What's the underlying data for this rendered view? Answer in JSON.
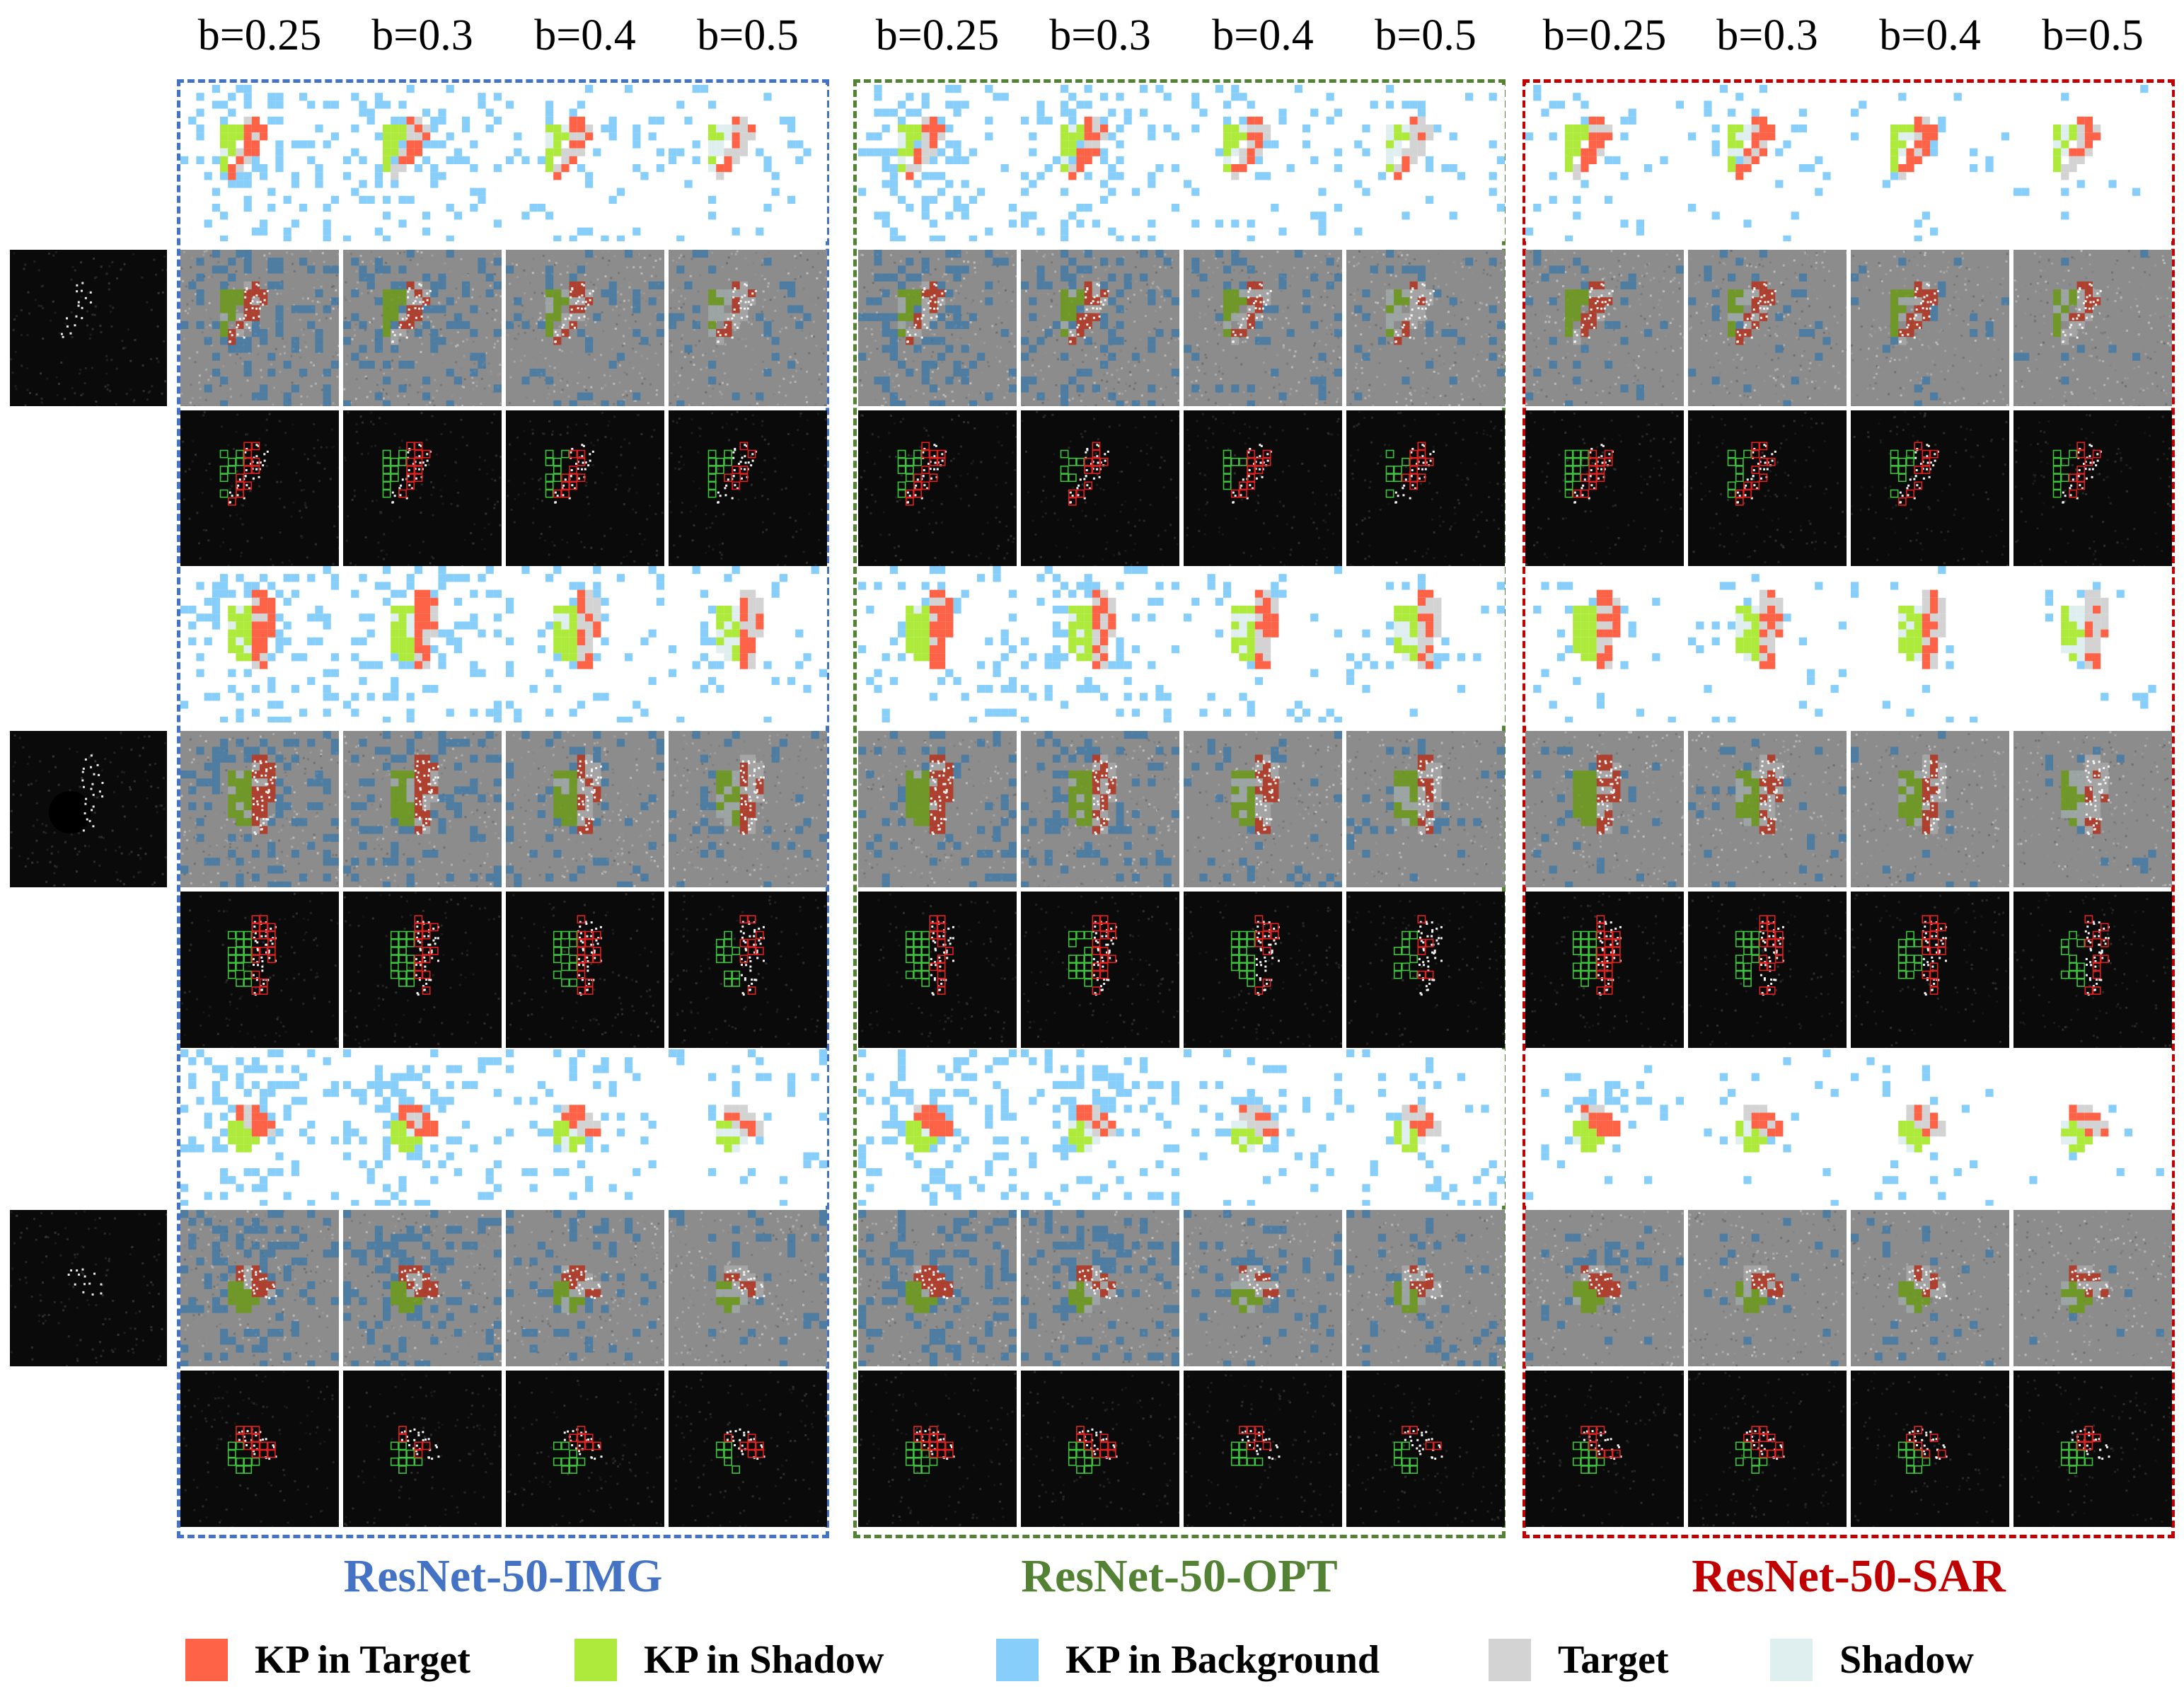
{
  "column_headers": [
    "b=0.25",
    "b=0.3",
    "b=0.4",
    "b=0.5"
  ],
  "groups": [
    {
      "title": "ResNet-50-IMG",
      "color": "#4472c4"
    },
    {
      "title": "ResNet-50-OPT",
      "color": "#548235"
    },
    {
      "title": "ResNet-50-SAR",
      "color": "#c00000"
    }
  ],
  "row_types": [
    "keypoint-map",
    "overlay-on-sar",
    "region-outline"
  ],
  "legend": [
    {
      "label": "KP in Target",
      "color": "#ff6347"
    },
    {
      "label": "KP in Shadow",
      "color": "#adea3c"
    },
    {
      "label": "KP in Background",
      "color": "#87cefa"
    },
    {
      "label": "Target",
      "color": "#d3d3d3"
    },
    {
      "label": "Shadow",
      "color": "#dfeeee"
    }
  ],
  "samples": 3
}
